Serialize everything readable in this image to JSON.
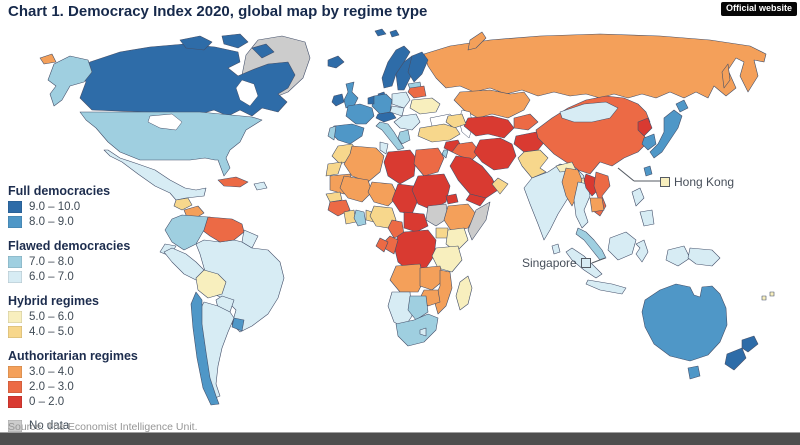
{
  "header": {
    "title": "Chart 1. Democracy Index 2020, global map by regime type",
    "badge": "Official website"
  },
  "legend": {
    "groups": [
      {
        "label": "Full democracies",
        "items": [
          {
            "range": "9.0 – 10.0",
            "key": "fd9"
          },
          {
            "range": "8.0 – 9.0",
            "key": "fd8"
          }
        ]
      },
      {
        "label": "Flawed democracies",
        "items": [
          {
            "range": "7.0 – 8.0",
            "key": "fl7"
          },
          {
            "range": "6.0 – 7.0",
            "key": "fl6"
          }
        ]
      },
      {
        "label": "Hybrid regimes",
        "items": [
          {
            "range": "5.0 – 6.0",
            "key": "hy5"
          },
          {
            "range": "4.0 – 5.0",
            "key": "hy4"
          }
        ]
      },
      {
        "label": "Authoritarian regimes",
        "items": [
          {
            "range": "3.0 – 4.0",
            "key": "au3"
          },
          {
            "range": "2.0 – 3.0",
            "key": "au2"
          },
          {
            "range": "0 – 2.0",
            "key": "au0"
          }
        ]
      },
      {
        "label": "",
        "items": [
          {
            "range": "No data",
            "key": "nd"
          }
        ]
      }
    ],
    "colors": {
      "fd9": "#2e6ca8",
      "fd8": "#4f97c7",
      "fl7": "#9fcfe0",
      "fl6": "#d7ecf4",
      "hy5": "#f8efbe",
      "hy4": "#f7d78c",
      "au3": "#f4a05a",
      "au2": "#ec6a45",
      "au0": "#d93a31",
      "nd": "#cccccc"
    }
  },
  "callouts": [
    {
      "label": "Hong Kong",
      "key": "hy5"
    },
    {
      "label": "Singapore",
      "key": "fl6"
    }
  ],
  "footer": {
    "source": "Source: The Economist Intelligence Unit."
  },
  "map": {
    "ocean": "#ffffff",
    "border": "#44506a",
    "regions": {
      "greenland": "nd",
      "canada": "fd9",
      "arctic-island-1": "fd9",
      "arctic-island-2": "fd9",
      "arctic-island-3": "fd9",
      "alaska": "fl7",
      "chukotka": "au3",
      "usa": "fl7",
      "great-lakes": "ocean",
      "hudson-bay": "ocean",
      "mexico": "fl6",
      "guatemala": "hy4",
      "honduras-nicaragua": "au3",
      "costa-rica-panama": "fd8",
      "cuba": "au2",
      "hispaniola": "fl6",
      "colombia": "fl7",
      "venezuela": "au2",
      "guyanas": "fl6",
      "brazil": "fl6",
      "ecuador": "fl6",
      "peru": "fl6",
      "bolivia": "hy5",
      "paraguay": "fl6",
      "argentina": "fl6",
      "chile": "fd8",
      "uruguay": "fd8",
      "iceland": "fd9",
      "ireland": "fd9",
      "uk": "fd8",
      "norway": "fd9",
      "sweden": "fd9",
      "finland": "fd9",
      "denmark": "fd9",
      "svalbard": "fd9",
      "novaya-zemlya": "au3",
      "baltics": "fl7",
      "france": "fd8",
      "spain": "fd8",
      "portugal": "fl7",
      "germany": "fd8",
      "benelux": "fd9",
      "switzerland-austria": "fd9",
      "italy": "fl7",
      "poland": "fl6",
      "czech-hungary": "fl6",
      "romania-bulgaria": "fl6",
      "greece": "fl7",
      "belarus": "au2",
      "ukraine": "hy5",
      "russia": "au3",
      "sakhalin": "au3",
      "kazakhstan": "au3",
      "uzbekistan-turkmenistan": "au0",
      "kyrgyzstan-tajikistan": "au2",
      "caucasus": "hy4",
      "turkey": "hy4",
      "syria": "au0",
      "iraq": "au2",
      "iran": "au0",
      "israel": "fl7",
      "saudi-arabia": "au0",
      "oman": "hy4",
      "yemen": "au0",
      "afghanistan": "au0",
      "pakistan": "hy4",
      "india": "fl6",
      "nepal": "hy5",
      "bangladesh": "hy5",
      "sri-lanka": "fl6",
      "china": "au2",
      "mongolia": "fl6",
      "north-korea": "au0",
      "south-korea": "fd8",
      "japan": "fd8",
      "japan-north": "fd8",
      "taiwan": "fd8",
      "myanmar": "au3",
      "thailand": "fl6",
      "laos": "au0",
      "vietnam": "au2",
      "cambodia": "au3",
      "malaysia": "fl7",
      "borneo": "fl6",
      "sumatra": "fl6",
      "java": "fl6",
      "sulawesi": "fl6",
      "west-papua": "fl6",
      "papua-new-guinea": "fl6",
      "philippines-luzon": "fl6",
      "philippines-mindanao": "fl6",
      "morocco": "hy4",
      "western-sahara": "hy4",
      "algeria": "au3",
      "tunisia": "fl6",
      "libya": "au0",
      "egypt": "au2",
      "mauritania": "au3",
      "mali": "au3",
      "niger": "au3",
      "chad": "au0",
      "sudan": "au0",
      "eritrea": "au0",
      "senegal": "hy4",
      "guinea-region": "au2",
      "ivory-coast": "hy4",
      "ghana": "fl7",
      "togo-benin": "hy4",
      "nigeria": "hy4",
      "cameroon": "au2",
      "central-african-republic": "au0",
      "south-sudan": "nd",
      "ethiopia": "au3",
      "somalia": "nd",
      "uganda": "hy4",
      "kenya": "hy5",
      "drc": "au0",
      "congo": "au2",
      "gabon": "au2",
      "tanzania": "hy5",
      "angola": "au3",
      "zambia": "au3",
      "mozambique": "au3",
      "zimbabwe": "au3",
      "namibia": "fl6",
      "botswana": "fl7",
      "south-africa": "fl7",
      "lesotho": "fl6",
      "madagascar": "hy5",
      "caspian-sea": "ocean",
      "black-sea": "ocean",
      "australia": "fd8",
      "tasmania": "fd8",
      "nz-north": "fd9",
      "nz-south": "fd9",
      "fiji": "hy5"
    }
  }
}
